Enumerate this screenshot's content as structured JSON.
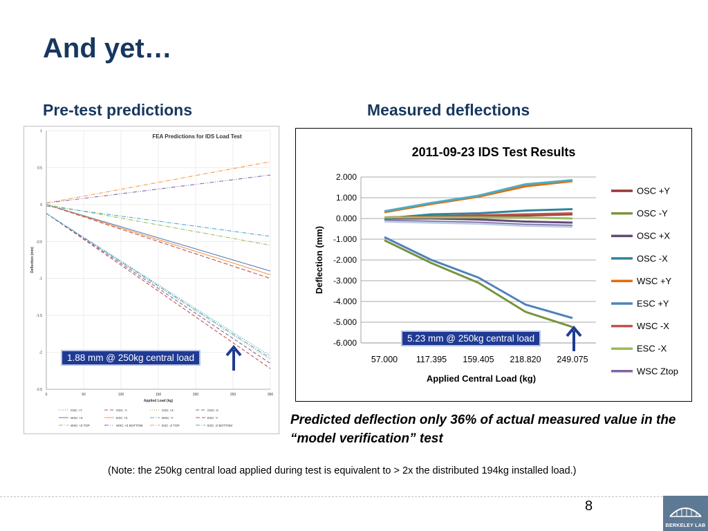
{
  "slide": {
    "title": "And yet…",
    "left_heading": "Pre-test predictions",
    "right_heading": "Measured deflections",
    "caption": "Predicted deflection only 36% of actual measured value in the “model verification” test",
    "note": "(Note: the 250kg central load applied during test is equivalent to > 2x the distributed 194kg installed load.)",
    "page_number": "8",
    "logo_text": "BERKELEY LAB",
    "callout_left": "1.88 mm @ 250kg central load",
    "callout_right": "5.23 mm @ 250kg central load",
    "colors": {
      "heading": "#17375e",
      "callout_bg": "#1f3a93",
      "arrow": "#1f3a93"
    }
  },
  "chart_data": [
    {
      "type": "line",
      "title": "FEA Predictions for IDS Load Test",
      "xlabel": "Applied Load (kg)",
      "ylabel": "Deflection (mm)",
      "xlim": [
        0,
        300
      ],
      "ylim": [
        -2.5,
        1
      ],
      "xticks": [
        0,
        50,
        100,
        150,
        200,
        250,
        300
      ],
      "yticks": [
        1,
        0.5,
        0,
        -0.5,
        -1,
        -1.5,
        -2,
        -2.5
      ],
      "grid": true,
      "legend_position": "bottom",
      "series": [
        {
          "name": "OSC +Y",
          "color": "#4f81bd",
          "dash": "1,2",
          "x": [
            0,
            300
          ],
          "y": [
            -0.12,
            -2.05
          ]
        },
        {
          "name": "OSC -Y",
          "color": "#c0504d",
          "dash": "5,3",
          "x": [
            0,
            300
          ],
          "y": [
            -0.12,
            -2.22
          ]
        },
        {
          "name": "OSC +X",
          "color": "#9bbb59",
          "dash": "1,2",
          "x": [
            0,
            300
          ],
          "y": [
            -0.12,
            -2.1
          ]
        },
        {
          "name": "OSC -X",
          "color": "#8064a2",
          "dash": "5,3",
          "x": [
            0,
            300
          ],
          "y": [
            -0.12,
            -2.15
          ]
        },
        {
          "name": "WSC +X",
          "color": "#4f81bd",
          "dash": "",
          "x": [
            0,
            300
          ],
          "y": [
            0,
            -0.9
          ]
        },
        {
          "name": "ESC +X",
          "color": "#f79646",
          "dash": "",
          "x": [
            0,
            300
          ],
          "y": [
            0,
            -0.95
          ]
        },
        {
          "name": "WSC -Y",
          "color": "#4bacc6",
          "dash": "6,2,1,2",
          "x": [
            0,
            300
          ],
          "y": [
            -0.12,
            -2.08
          ]
        },
        {
          "name": "ESC -Y",
          "color": "#c0504d",
          "dash": "6,3",
          "x": [
            0,
            300
          ],
          "y": [
            0,
            -1.0
          ]
        },
        {
          "name": "WSC +Z TOP",
          "color": "#9bbb59",
          "dash": "6,2,1,2",
          "x": [
            0,
            300
          ],
          "y": [
            0,
            -0.55
          ]
        },
        {
          "name": "WSC +Z BOTTOM",
          "color": "#8064a2",
          "dash": "6,2,1,2,1,2",
          "x": [
            0,
            300
          ],
          "y": [
            0.02,
            0.4
          ]
        },
        {
          "name": "ESC -Z TOP",
          "color": "#f79646",
          "dash": "6,2,1,2",
          "x": [
            0,
            300
          ],
          "y": [
            0.02,
            0.58
          ]
        },
        {
          "name": "ESC -Z BOTTOM",
          "color": "#4bacc6",
          "dash": "6,2,1,2",
          "x": [
            0,
            300
          ],
          "y": [
            -0.02,
            -0.43
          ]
        }
      ]
    },
    {
      "type": "line",
      "title": "2011-09-23 IDS Test Results",
      "xlabel": "Applied Central Load (kg)",
      "ylabel": "Deflection (mm)",
      "categories": [
        "57.000",
        "117.395",
        "159.405",
        "218.820",
        "249.075"
      ],
      "ylim": [
        -6,
        2
      ],
      "yticks": [
        "2.000",
        "1.000",
        "0.000",
        "-1.000",
        "-2.000",
        "-3.000",
        "-4.000",
        "-5.000",
        "-6.000"
      ],
      "grid": true,
      "legend_position": "right",
      "series": [
        {
          "name": "OSC +Y",
          "color": "#953735",
          "values": [
            0.05,
            0.1,
            0.12,
            0.15,
            0.2
          ]
        },
        {
          "name": "OSC -Y",
          "color": "#77933c",
          "values": [
            -1.05,
            -2.15,
            -3.1,
            -4.5,
            -5.23
          ]
        },
        {
          "name": "OSC +X",
          "color": "#604a7b",
          "values": [
            0.0,
            0.0,
            -0.05,
            -0.15,
            -0.2
          ]
        },
        {
          "name": "OSC -X",
          "color": "#31859c",
          "values": [
            0.0,
            0.2,
            0.25,
            0.38,
            0.45
          ]
        },
        {
          "name": "WSC +Y",
          "color": "#e46c0a",
          "values": [
            0.3,
            0.7,
            1.05,
            1.55,
            1.8
          ]
        },
        {
          "name": "ESC +Y",
          "color": "#4f81bd",
          "values": [
            -0.9,
            -2.0,
            -2.85,
            -4.15,
            -4.8
          ]
        },
        {
          "name": "WSC -X",
          "color": "#c0504d",
          "values": [
            0.05,
            0.1,
            0.15,
            0.2,
            0.25
          ]
        },
        {
          "name": "ESC -X",
          "color": "#9bbb59",
          "values": [
            0.05,
            0.05,
            0.05,
            0.05,
            0.0
          ]
        },
        {
          "name": "WSC Ztop",
          "color": "#8064a2",
          "values": [
            -0.1,
            -0.15,
            -0.2,
            -0.3,
            -0.35
          ]
        },
        {
          "name": "",
          "color": "#4bacc6",
          "values": [
            0.35,
            0.75,
            1.1,
            1.65,
            1.85
          ]
        },
        {
          "name": "",
          "color": "#b9cde5",
          "values": [
            -0.15,
            -0.2,
            -0.25,
            -0.35,
            -0.4
          ]
        }
      ]
    }
  ]
}
